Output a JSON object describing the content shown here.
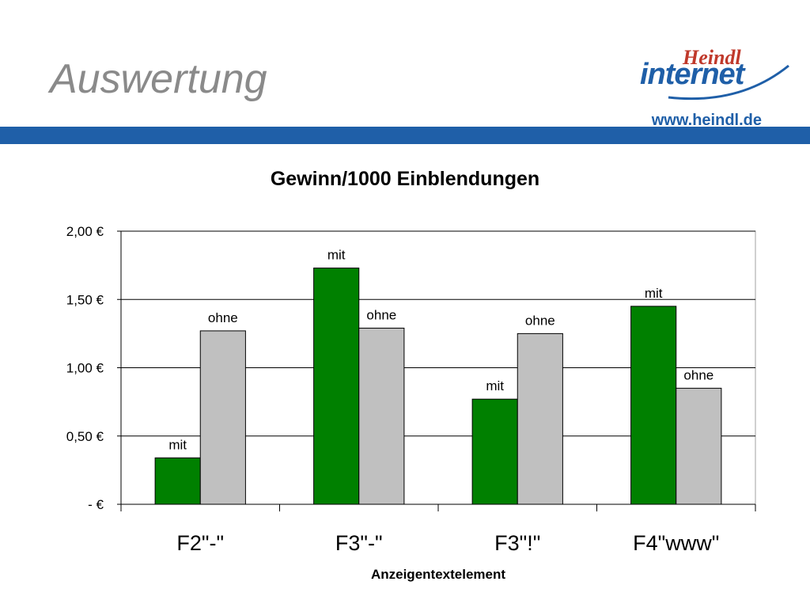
{
  "slide": {
    "title": "Auswertung"
  },
  "logo": {
    "brand_small": "Heindl",
    "brand_large": "internet",
    "url": "www.heindl.de"
  },
  "colors": {
    "band": "#1f5fa8",
    "mit": "#008000",
    "ohne": "#c0c0c0",
    "logo_red": "#c0392b",
    "logo_blue": "#1f5fa8"
  },
  "chart_data": {
    "type": "bar",
    "title": "Gewinn/1000 Einblendungen",
    "xlabel": "Anzeigentextelement",
    "ylabel": "",
    "categories": [
      "F2\"-\"",
      "F3\"-\"",
      "F3\"!\"",
      "F4\"www\""
    ],
    "series": [
      {
        "name": "mit",
        "values": [
          0.34,
          1.73,
          0.77,
          1.45
        ]
      },
      {
        "name": "ohne",
        "values": [
          1.27,
          1.29,
          1.25,
          0.85
        ]
      }
    ],
    "ylim": [
      0,
      2
    ],
    "yticks": [
      {
        "value": 0,
        "label": "-     €"
      },
      {
        "value": 0.5,
        "label": "0,50 €"
      },
      {
        "value": 1,
        "label": "1,00 €"
      },
      {
        "value": 1.5,
        "label": "1,50 €"
      },
      {
        "value": 2,
        "label": "2,00 €"
      }
    ],
    "grid": true,
    "legend": "none"
  }
}
